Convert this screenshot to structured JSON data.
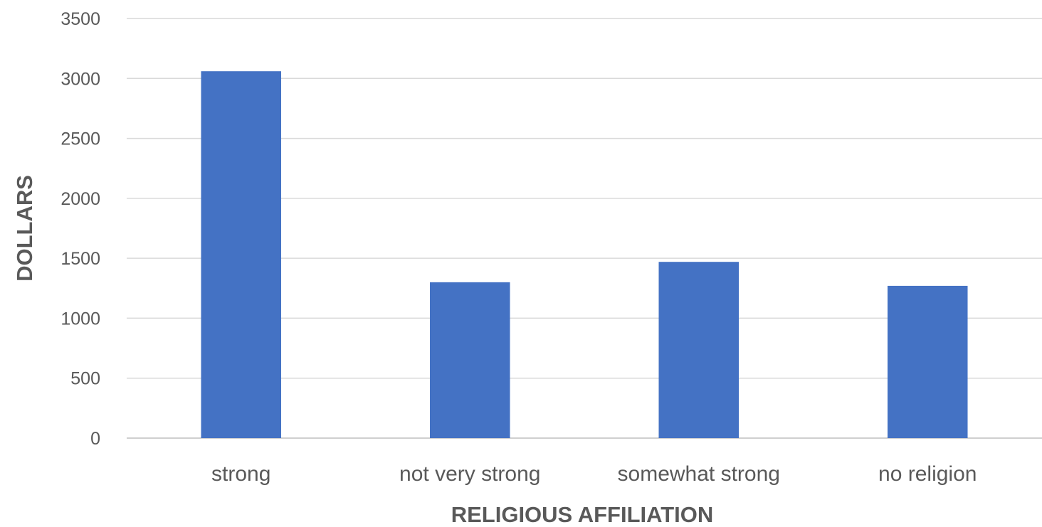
{
  "chart_data": {
    "type": "bar",
    "title": "",
    "xlabel": "RELIGIOUS AFFILIATION",
    "ylabel": "DOLLARS",
    "categories": [
      "strong",
      "not very strong",
      "somewhat strong",
      "no religion"
    ],
    "values": [
      3060,
      1300,
      1470,
      1270
    ],
    "ylim": [
      0,
      3500
    ],
    "yticks": [
      0,
      500,
      1000,
      1500,
      2000,
      2500,
      3000,
      3500
    ],
    "grid": true,
    "legend": "none",
    "bar_color": "#4472c4"
  }
}
